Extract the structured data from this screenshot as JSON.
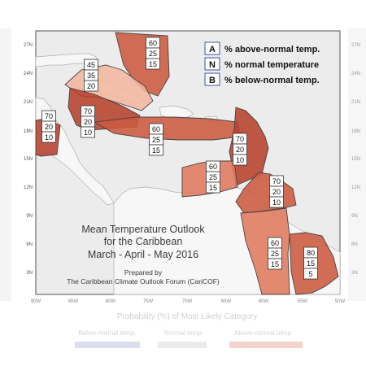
{
  "colors": {
    "ocean": "#ececec",
    "frame": "#555555",
    "land_fill": "#f7f7f7",
    "land_stroke": "#b0b0b0",
    "region_dark": "#b7412c",
    "region_mid": "#cc5a3f",
    "region_light": "#e07a5f",
    "region_pale": "#f2b7a0",
    "outline": "#444444",
    "legend_border": "#3a55a0"
  },
  "map": {
    "lat_labels": [
      "27N",
      "24N",
      "21N",
      "18N",
      "15N",
      "12N",
      "9N",
      "6N",
      "3N"
    ],
    "lon_labels": [
      "90W",
      "85W",
      "80W",
      "75W",
      "70W",
      "65W",
      "60W",
      "55W",
      "50W"
    ],
    "right_lat_labels": [
      "27N",
      "24N",
      "21N",
      "18N",
      "15N",
      "12N",
      "9N",
      "6N",
      "3N"
    ]
  },
  "legend": {
    "rows": [
      {
        "key": "A",
        "text": "% above-normal temp."
      },
      {
        "key": "N",
        "text": "% normal temperature"
      },
      {
        "key": "B",
        "text": "% below-normal temp."
      }
    ]
  },
  "regions": [
    {
      "name": "bahamas-north",
      "probs": [
        "60",
        "25",
        "15"
      ],
      "shade": "region_mid"
    },
    {
      "name": "cuba",
      "probs": [
        "45",
        "35",
        "20"
      ],
      "shade": "region_pale"
    },
    {
      "name": "central-america-west",
      "probs": [
        "70",
        "20",
        "10"
      ],
      "shade": "region_dark"
    },
    {
      "name": "jamaica-caymans",
      "probs": [
        "70",
        "20",
        "10"
      ],
      "shade": "region_dark"
    },
    {
      "name": "hispaniola-puerto-rico",
      "probs": [
        "60",
        "25",
        "15"
      ],
      "shade": "region_mid"
    },
    {
      "name": "lesser-antilles-north",
      "probs": [
        "70",
        "20",
        "10"
      ],
      "shade": "region_dark"
    },
    {
      "name": "abc-islands",
      "probs": [
        "60",
        "25",
        "15"
      ],
      "shade": "region_light"
    },
    {
      "name": "lesser-antilles-south",
      "probs": [
        "70",
        "20",
        "10"
      ],
      "shade": "region_mid"
    },
    {
      "name": "guyana",
      "probs": [
        "60",
        "25",
        "15"
      ],
      "shade": "region_light"
    },
    {
      "name": "suriname-french-guiana",
      "probs": [
        "80",
        "15",
        "5"
      ],
      "shade": "region_mid"
    }
  ],
  "title_block": {
    "line1": "Mean Temperature Outlook",
    "line2": "for the Caribbean",
    "line3": "March - April - May 2016",
    "prepared": "Prepared by",
    "org": "The Caribbean Climate Outlook Forum (CariCOF)"
  },
  "colorbar": {
    "title": "Probability (%) of Most Likely Category",
    "labels": [
      "Below-normal temp.",
      "Normal temp.",
      "Above-normal temp."
    ]
  }
}
